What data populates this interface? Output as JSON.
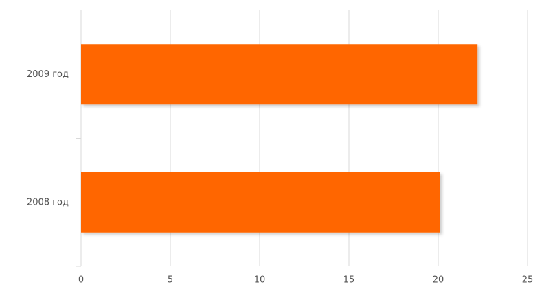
{
  "chart_data": {
    "type": "bar",
    "orientation": "horizontal",
    "categories": [
      "2008 год",
      "2009 год"
    ],
    "values": [
      20.1,
      22.2
    ],
    "color": "#ff6600",
    "xlim": [
      0,
      25
    ],
    "xticks": [
      0,
      5,
      10,
      15,
      20,
      25
    ],
    "grid": true
  }
}
